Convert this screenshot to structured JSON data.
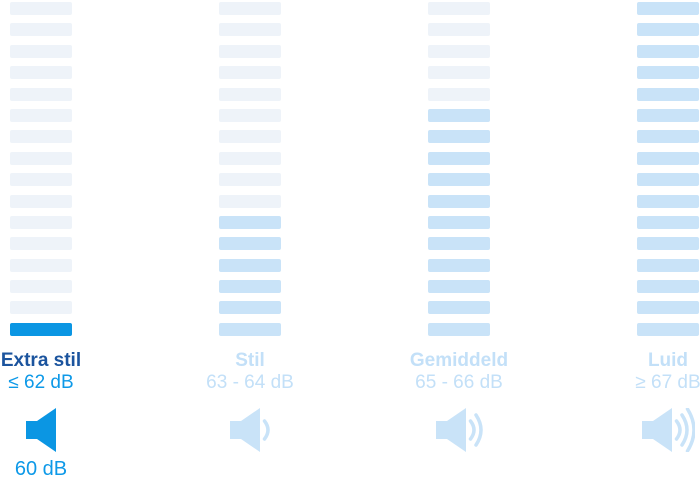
{
  "widget": "noise-level-selector",
  "colors": {
    "background": "#ffffff",
    "bar_inactive": "#eef3f9",
    "bar_highlight": "#c9e3f8",
    "bar_selected": "#0b96e3",
    "name_active": "#1b549e",
    "value_active": "#0d99e8",
    "label_inactive": "#c3e0f8"
  },
  "bars_per_column": 16,
  "columns": [
    {
      "name": "Extra stil",
      "range": "≤ 62 dB",
      "selected": true,
      "highlighted_bars": 1,
      "icon": "speaker-quiet-icon",
      "speaker_waves": 0,
      "current_db": "60 dB"
    },
    {
      "name": "Stil",
      "range": "63 - 64 dB",
      "selected": false,
      "highlighted_bars": 6,
      "icon": "speaker-low-icon",
      "speaker_waves": 1
    },
    {
      "name": "Gemiddeld",
      "range": "65 - 66 dB",
      "selected": false,
      "highlighted_bars": 11,
      "icon": "speaker-medium-icon",
      "speaker_waves": 2
    },
    {
      "name": "Luid",
      "range": "≥ 67 dB",
      "selected": false,
      "highlighted_bars": 16,
      "icon": "speaker-loud-icon",
      "speaker_waves": 3
    }
  ]
}
